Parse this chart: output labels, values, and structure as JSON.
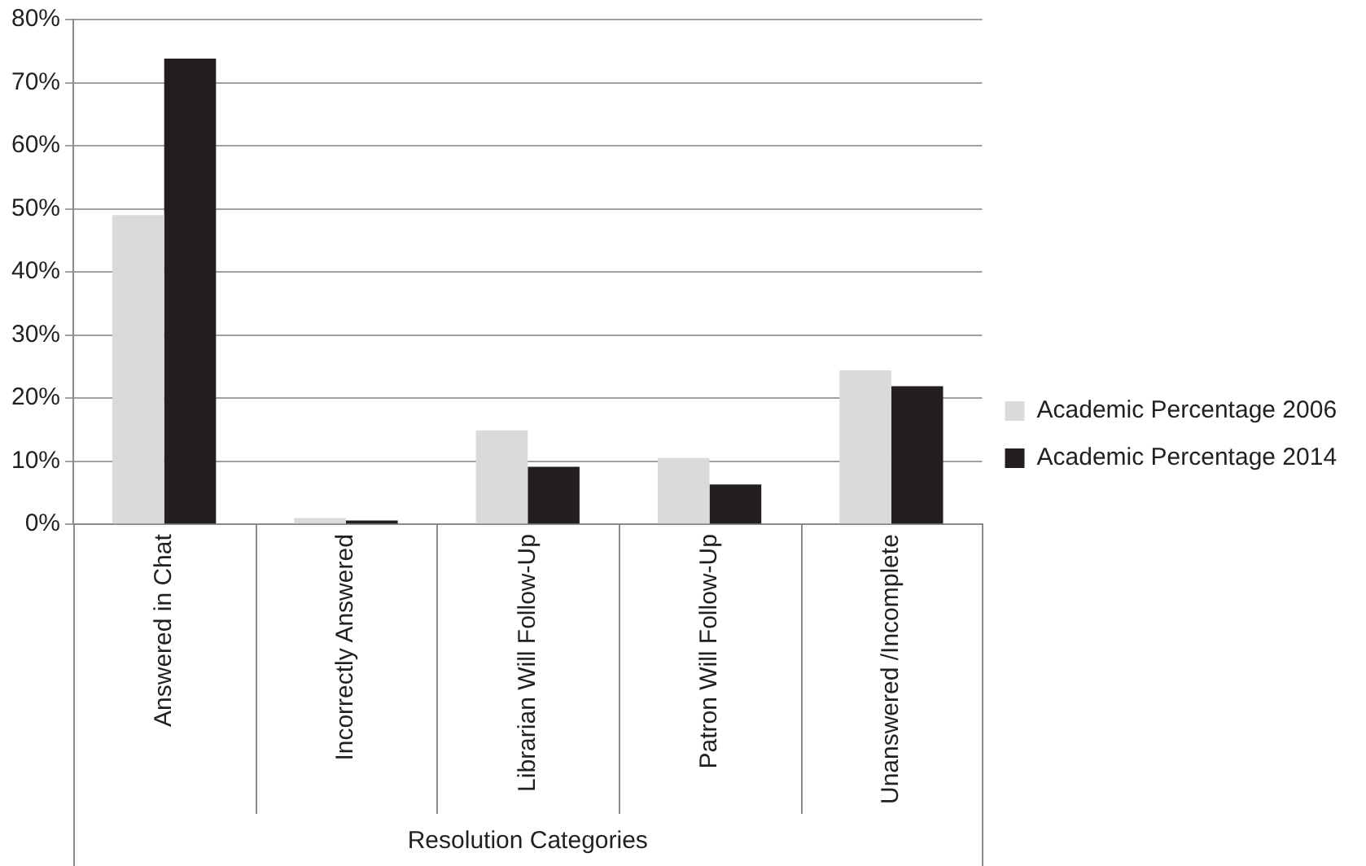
{
  "chart_data": {
    "type": "bar",
    "xlabel": "Resolution Categories",
    "categories": [
      "Answered in Chat",
      "Incorrectly Answered",
      "Librarian Will Follow-Up",
      "Patron Will Follow-Up",
      "Unanswered /Incomplete"
    ],
    "series": [
      {
        "name": "Academic Percentage 2006",
        "color": "#d9dadb",
        "values": [
          49,
          1,
          14.9,
          10.5,
          24.4
        ]
      },
      {
        "name": "Academic Percentage 2014",
        "color": "#231f20",
        "values": [
          73.8,
          0.6,
          9.1,
          6.3,
          21.9
        ]
      }
    ],
    "ylim": [
      0,
      80
    ],
    "yticks": [
      {
        "value": 0,
        "label": "0%"
      },
      {
        "value": 10,
        "label": "10%"
      },
      {
        "value": 20,
        "label": "20%"
      },
      {
        "value": 30,
        "label": "30%"
      },
      {
        "value": 40,
        "label": "40%"
      },
      {
        "value": 50,
        "label": "50%"
      },
      {
        "value": 60,
        "label": "60%"
      },
      {
        "value": 70,
        "label": "70%"
      },
      {
        "value": 80,
        "label": "80%"
      }
    ],
    "grid": "y",
    "legend": "right"
  }
}
